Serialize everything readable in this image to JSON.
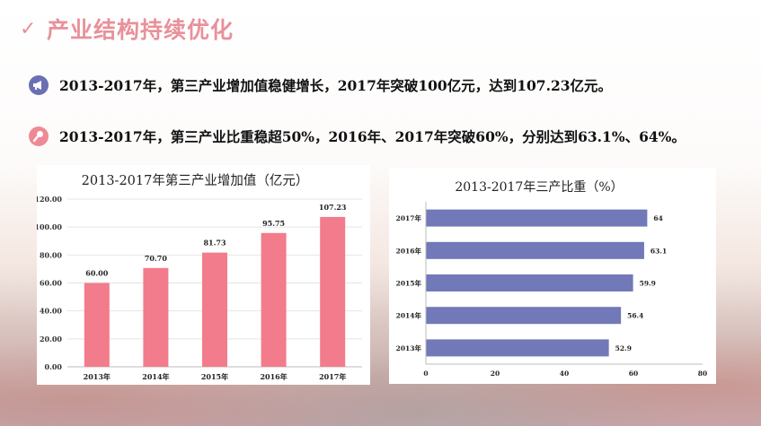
{
  "header": {
    "title": "产业结构持续优化",
    "check_icon": "✓"
  },
  "bullets": [
    {
      "icon": "megaphone-icon",
      "color": "#6b6fb3",
      "text": "2013-2017年，第三产业增加值稳健增长，2017年突破100亿元，达到107.23亿元。"
    },
    {
      "icon": "microphone-icon",
      "color": "#ee8a95",
      "text": "2013-2017年，第三产业比重稳超50%，2016年、2017年突破60%，分别达到63.1%、64%。"
    }
  ],
  "chart_data": [
    {
      "type": "bar",
      "title": "2013-2017年第三产业增加值（亿元）",
      "categories": [
        "2013年",
        "2014年",
        "2015年",
        "2016年",
        "2017年"
      ],
      "values": [
        60.0,
        70.7,
        81.73,
        95.75,
        107.23
      ],
      "value_labels": [
        "60.00",
        "70.70",
        "81.73",
        "95.75",
        "107.23"
      ],
      "ylim": [
        0,
        120
      ],
      "yticks": [
        "0.00",
        "20.00",
        "40.00",
        "60.00",
        "80.00",
        "100.00",
        "120.00"
      ],
      "grid": true,
      "color": "#f27c8b"
    },
    {
      "type": "bar",
      "orientation": "horizontal",
      "title": "2013-2017年三产比重（%）",
      "categories": [
        "2017年",
        "2016年",
        "2015年",
        "2014年",
        "2013年"
      ],
      "values": [
        64,
        63.1,
        59.9,
        56.4,
        52.9
      ],
      "value_labels": [
        "64",
        "63.1",
        "59.9",
        "56.4",
        "52.9"
      ],
      "xlim": [
        0,
        80
      ],
      "xticks": [
        "0",
        "20",
        "40",
        "60",
        "80"
      ],
      "grid": false,
      "color": "#7179b9"
    }
  ]
}
